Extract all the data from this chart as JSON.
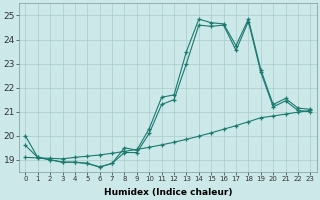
{
  "xlabel": "Humidex (Indice chaleur)",
  "bg_color": "#cce8e8",
  "line_color": "#1a7a6e",
  "grid_color": "#aacccc",
  "xlim": [
    -0.5,
    23.5
  ],
  "ylim": [
    18.5,
    25.5
  ],
  "yticks": [
    19,
    20,
    21,
    22,
    23,
    24,
    25
  ],
  "xticks": [
    0,
    1,
    2,
    3,
    4,
    5,
    6,
    7,
    8,
    9,
    10,
    11,
    12,
    13,
    14,
    15,
    16,
    17,
    18,
    19,
    20,
    21,
    22,
    23
  ],
  "line1_x": [
    0,
    1,
    2,
    3,
    4,
    5,
    6,
    7,
    8,
    9,
    10,
    11,
    12,
    13,
    14,
    15,
    16,
    17,
    18,
    19,
    20,
    21,
    22,
    23
  ],
  "line1_y": [
    20.0,
    19.1,
    19.0,
    18.9,
    18.9,
    18.85,
    18.7,
    18.85,
    19.5,
    19.4,
    20.3,
    21.6,
    21.7,
    23.5,
    24.85,
    24.7,
    24.65,
    23.75,
    24.85,
    22.75,
    21.3,
    21.55,
    21.15,
    21.1
  ],
  "line2_x": [
    0,
    1,
    2,
    3,
    4,
    5,
    6,
    7,
    8,
    9,
    10,
    11,
    12,
    13,
    14,
    15,
    16,
    17,
    18,
    19,
    20,
    21,
    22,
    23
  ],
  "line2_y": [
    19.6,
    19.1,
    19.0,
    18.9,
    18.9,
    18.85,
    18.7,
    18.85,
    19.3,
    19.3,
    20.1,
    21.3,
    21.5,
    23.0,
    24.6,
    24.55,
    24.6,
    23.55,
    24.75,
    22.65,
    21.2,
    21.45,
    21.05,
    21.0
  ],
  "line3_x": [
    0,
    1,
    2,
    3,
    4,
    5,
    6,
    7,
    8,
    9,
    10,
    11,
    12,
    13,
    14,
    15,
    16,
    17,
    18,
    19,
    20,
    21,
    22,
    23
  ],
  "line3_y": [
    19.1,
    19.08,
    19.06,
    19.04,
    19.1,
    19.15,
    19.2,
    19.27,
    19.35,
    19.43,
    19.52,
    19.62,
    19.73,
    19.85,
    19.98,
    20.12,
    20.27,
    20.42,
    20.58,
    20.75,
    20.82,
    20.9,
    20.98,
    21.05
  ]
}
